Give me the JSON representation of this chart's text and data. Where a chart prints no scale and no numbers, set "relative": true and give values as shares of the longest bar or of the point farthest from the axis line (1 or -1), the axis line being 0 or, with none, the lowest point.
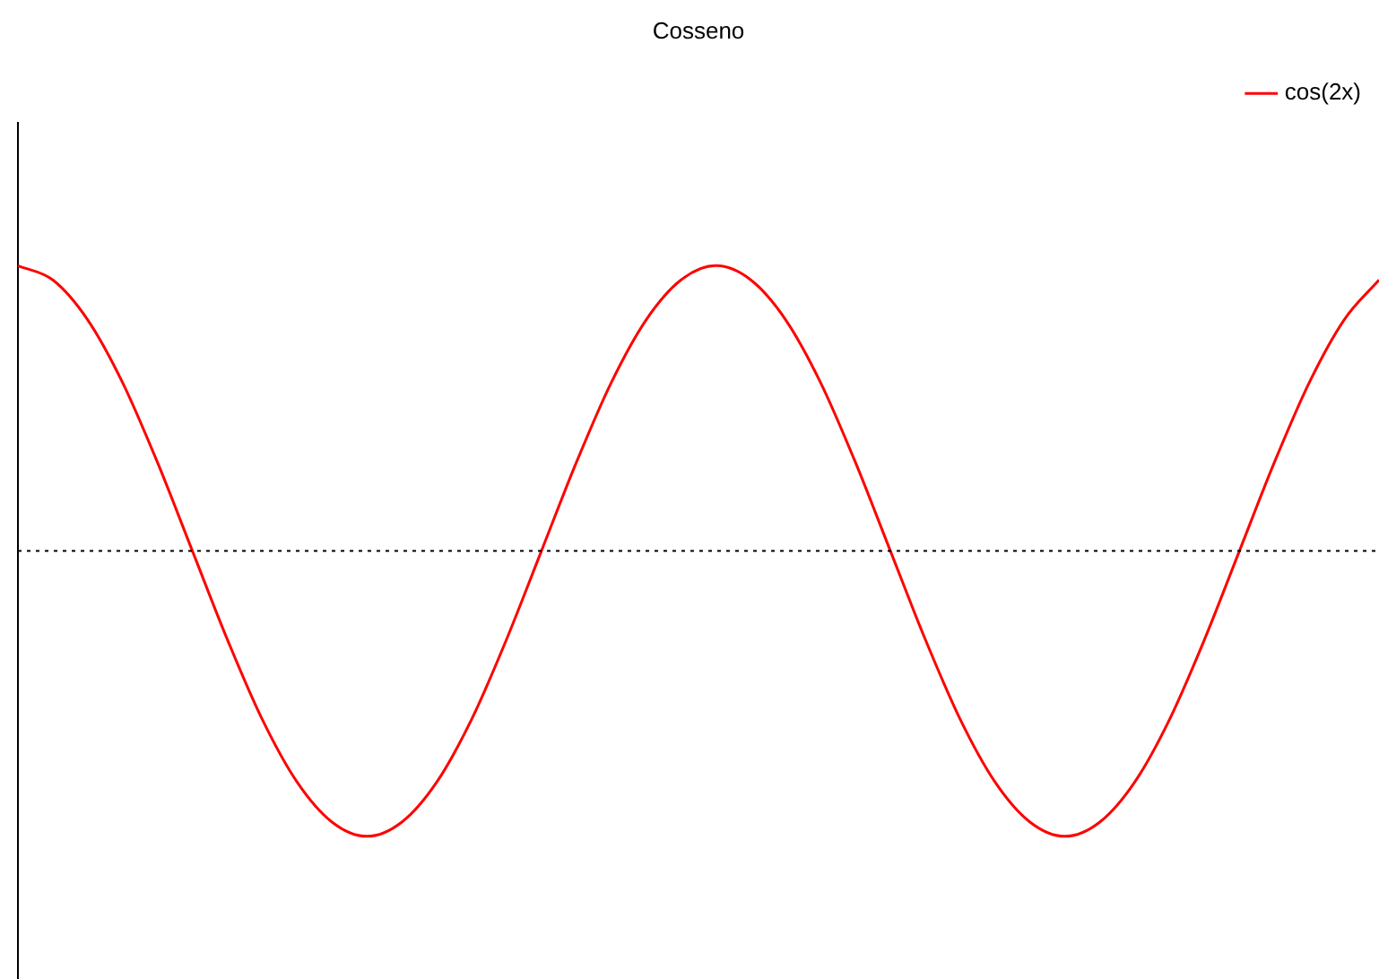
{
  "chart_data": {
    "type": "line",
    "title": "Cosseno",
    "relative": true,
    "categories": [
      null,
      null,
      null,
      null,
      null,
      null,
      null,
      null,
      null,
      null,
      null,
      null,
      null,
      null,
      null,
      null,
      null,
      null,
      null,
      null,
      null,
      null,
      null,
      null,
      null,
      null,
      null,
      null,
      null,
      null,
      null,
      null,
      null,
      null,
      null,
      null,
      null,
      null,
      null,
      null
    ],
    "series": [
      {
        "name": "cos(2x)",
        "color": "#ff0000",
        "values": [
          1,
          0.95,
          0.81,
          0.59,
          0.31,
          0,
          -0.31,
          -0.59,
          -0.81,
          -0.95,
          -1,
          -0.95,
          -0.81,
          -0.59,
          -0.31,
          0,
          0.31,
          0.59,
          0.81,
          0.95,
          1,
          0.95,
          0.81,
          0.59,
          0.31,
          0,
          -0.31,
          -0.59,
          -0.81,
          -0.95,
          -1,
          -0.95,
          -0.81,
          -0.59,
          -0.31,
          0,
          0.31,
          0.59,
          0.81,
          0.95
        ]
      }
    ],
    "ref_lines": [
      {
        "axis": "y",
        "value": 0,
        "line_style": "dotted",
        "color": "#000000"
      }
    ],
    "legend": "top right",
    "grid": false,
    "tick_labels": false,
    "marker": "none",
    "line_style": "solid"
  }
}
